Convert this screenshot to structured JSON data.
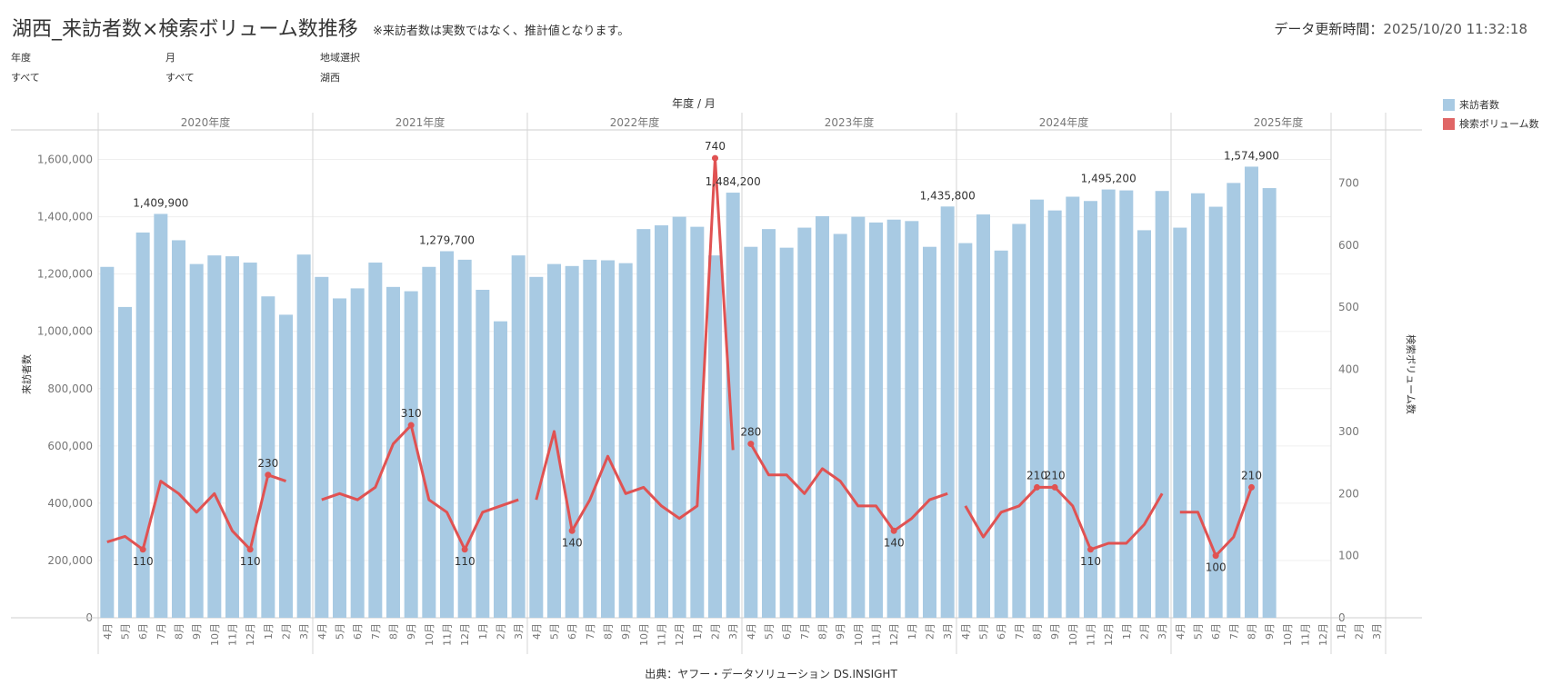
{
  "header": {
    "title": "湖西_来訪者数×検索ボリューム数推移",
    "subtitle": "※来訪者数は実数ではなく、推計値となります。",
    "updated_label": "データ更新時間：",
    "updated_value": "2025/10/20 11:32:18"
  },
  "filters": [
    {
      "label": "年度",
      "value": "すべて"
    },
    {
      "label": "月",
      "value": "すべて"
    },
    {
      "label": "地域選択",
      "value": "湖西"
    }
  ],
  "legend": [
    {
      "label": "来訪者数",
      "color": "#a8cae3"
    },
    {
      "label": "検索ボリューム数",
      "color": "#e06666"
    }
  ],
  "source": "出典：ヤフー・データソリューション DS.INSIGHT",
  "chart_data": {
    "type": "bar",
    "top_header": "年度 / 月",
    "ylabel": "来訪者数",
    "y2label": "検索ボリューム数",
    "ylim": [
      0,
      1700000
    ],
    "y2lim": [
      0,
      784
    ],
    "yticks": [
      0,
      200000,
      400000,
      600000,
      800000,
      1000000,
      1200000,
      1400000,
      1600000
    ],
    "ytick_labels": [
      "0",
      "200,000",
      "400,000",
      "600,000",
      "800,000",
      "1,000,000",
      "1,200,000",
      "1,400,000",
      "1,600,000"
    ],
    "y2ticks": [
      0,
      100,
      200,
      300,
      400,
      500,
      600,
      700
    ],
    "grid": true,
    "legend_position": "top-right",
    "months": [
      "4月",
      "5月",
      "6月",
      "7月",
      "8月",
      "9月",
      "10月",
      "11月",
      "12月",
      "1月",
      "2月",
      "3月"
    ],
    "years": [
      {
        "label": "2020年度",
        "visitors": [
          1225000,
          1085000,
          1345000,
          1409900,
          1318000,
          1235000,
          1265000,
          1262000,
          1240000,
          1122000,
          1058000,
          1268000
        ],
        "search": [
          122,
          131,
          110,
          220,
          200,
          170,
          200,
          140,
          110,
          230,
          220,
          null
        ]
      },
      {
        "label": "2021年度",
        "visitors": [
          1190000,
          1115000,
          1150000,
          1240000,
          1155000,
          1140000,
          1225000,
          1279700,
          1250000,
          1145000,
          1035000,
          1265000
        ],
        "search": [
          190,
          200,
          190,
          210,
          280,
          310,
          190,
          170,
          110,
          170,
          180,
          190
        ]
      },
      {
        "label": "2022年度",
        "visitors": [
          1190000,
          1235000,
          1228000,
          1250000,
          1248000,
          1238000,
          1357000,
          1370000,
          1400000,
          1365000,
          1265000,
          1484200
        ],
        "search": [
          190,
          300,
          140,
          190,
          260,
          200,
          210,
          180,
          160,
          180,
          740,
          270
        ]
      },
      {
        "label": "2023年度",
        "visitors": [
          1295000,
          1357000,
          1292000,
          1362000,
          1402000,
          1340000,
          1400000,
          1380000,
          1390000,
          1385000,
          1295000,
          1435800
        ],
        "search": [
          280,
          230,
          230,
          200,
          240,
          220,
          180,
          180,
          140,
          160,
          190,
          200
        ]
      },
      {
        "label": "2024年度",
        "visitors": [
          1308000,
          1408000,
          1282000,
          1375000,
          1460000,
          1422000,
          1470000,
          1455000,
          1495200,
          1492000,
          1353000,
          1490000
        ],
        "search": [
          180,
          130,
          170,
          180,
          210,
          210,
          180,
          110,
          120,
          120,
          150,
          200
        ]
      },
      {
        "label": "2025年度",
        "visitors": [
          1362000,
          1482000,
          1435000,
          1518000,
          1574900,
          1500000,
          null,
          null,
          null,
          null,
          null,
          null
        ],
        "search": [
          170,
          170,
          100,
          130,
          210,
          null,
          null,
          null,
          null,
          null,
          null,
          null
        ]
      }
    ],
    "visitor_labels": [
      {
        "year": 0,
        "month": 3,
        "text": "1,409,900"
      },
      {
        "year": 1,
        "month": 7,
        "text": "1,279,700"
      },
      {
        "year": 2,
        "month": 11,
        "text": "1,484,200"
      },
      {
        "year": 3,
        "month": 11,
        "text": "1,435,800"
      },
      {
        "year": 4,
        "month": 8,
        "text": "1,495,200"
      },
      {
        "year": 5,
        "month": 4,
        "text": "1,574,900"
      }
    ],
    "search_labels": [
      {
        "year": 0,
        "month": 2,
        "text": "110",
        "pos": "below"
      },
      {
        "year": 0,
        "month": 8,
        "text": "110",
        "pos": "below"
      },
      {
        "year": 0,
        "month": 9,
        "text": "230",
        "pos": "above"
      },
      {
        "year": 1,
        "month": 5,
        "text": "310",
        "pos": "above"
      },
      {
        "year": 1,
        "month": 8,
        "text": "110",
        "pos": "below"
      },
      {
        "year": 2,
        "month": 2,
        "text": "140",
        "pos": "below"
      },
      {
        "year": 2,
        "month": 10,
        "text": "740",
        "pos": "above"
      },
      {
        "year": 3,
        "month": 0,
        "text": "280",
        "pos": "above"
      },
      {
        "year": 3,
        "month": 8,
        "text": "140",
        "pos": "below"
      },
      {
        "year": 4,
        "month": 4,
        "text": "210",
        "pos": "above"
      },
      {
        "year": 4,
        "month": 5,
        "text": "210",
        "pos": "above"
      },
      {
        "year": 4,
        "month": 7,
        "text": "110",
        "pos": "below"
      },
      {
        "year": 5,
        "month": 2,
        "text": "100",
        "pos": "below"
      },
      {
        "year": 5,
        "month": 4,
        "text": "210",
        "pos": "above"
      }
    ]
  }
}
